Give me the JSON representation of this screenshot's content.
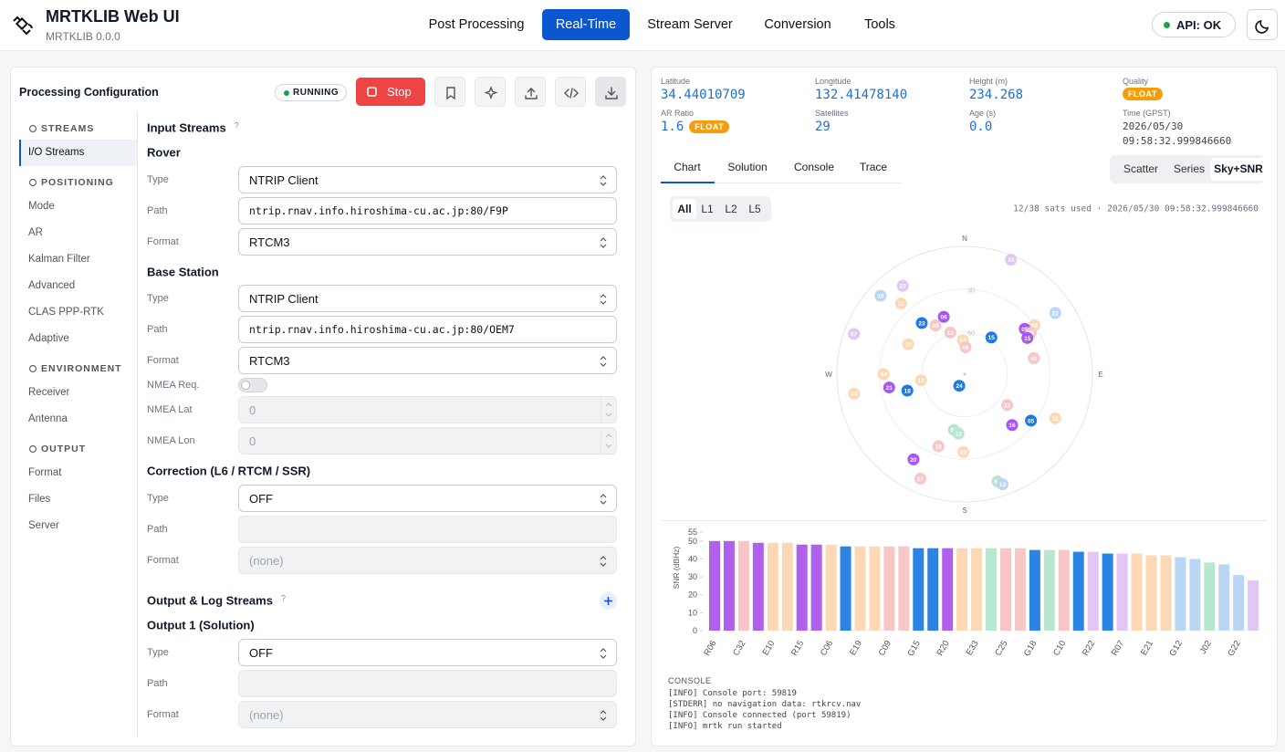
{
  "header": {
    "title": "MRTKLIB Web UI",
    "version": "MRTKLIB 0.0.0",
    "nav": [
      "Post Processing",
      "Real-Time",
      "Stream Server",
      "Conversion",
      "Tools"
    ],
    "api": "API: OK"
  },
  "config": {
    "title": "Processing Configuration",
    "status": "RUNNING",
    "stop": "Stop",
    "sidebar": [
      {
        "title": "STREAMS",
        "items": [
          "I/O Streams"
        ]
      },
      {
        "title": "POSITIONING",
        "items": [
          "Mode",
          "AR",
          "Kalman Filter",
          "Advanced",
          "CLAS PPP-RTK",
          "Adaptive"
        ]
      },
      {
        "title": "ENVIRONMENT",
        "items": [
          "Receiver",
          "Antenna"
        ]
      },
      {
        "title": "OUTPUT",
        "items": [
          "Format",
          "Files",
          "Server"
        ]
      }
    ],
    "rows": [
      {
        "kind": "heading",
        "text": "Input Streams",
        "help": "?"
      },
      {
        "kind": "sub",
        "text": "Rover"
      },
      {
        "kind": "field",
        "label": "Type",
        "value": "NTRIP Client",
        "control": "select"
      },
      {
        "kind": "field",
        "label": "Path",
        "value": "ntrip.rnav.info.hiroshima-cu.ac.jp:80/F9P",
        "control": "input"
      },
      {
        "kind": "field",
        "label": "Format",
        "value": "RTCM3",
        "control": "select"
      },
      {
        "kind": "sub",
        "text": "Base Station"
      },
      {
        "kind": "field",
        "label": "Type",
        "value": "NTRIP Client",
        "control": "select"
      },
      {
        "kind": "field",
        "label": "Path",
        "value": "ntrip.rnav.info.hiroshima-cu.ac.jp:80/OEM7",
        "control": "input"
      },
      {
        "kind": "field",
        "label": "Format",
        "value": "RTCM3",
        "control": "select"
      },
      {
        "kind": "field",
        "label": "NMEA Req.",
        "control": "toggle"
      },
      {
        "kind": "field",
        "label": "NMEA Lat",
        "value": "0",
        "control": "number"
      },
      {
        "kind": "field",
        "label": "NMEA Lon",
        "value": "0",
        "control": "number"
      },
      {
        "kind": "heading",
        "text": "Correction (L6 / RTCM / SSR)"
      },
      {
        "kind": "field",
        "label": "Type",
        "value": "OFF",
        "control": "select"
      },
      {
        "kind": "field",
        "label": "Path",
        "control": "disabled"
      },
      {
        "kind": "field",
        "label": "Format",
        "value": "(none)",
        "control": "disabled-select"
      },
      {
        "kind": "heading",
        "text": "Output & Log Streams",
        "help": "?",
        "add_button": true
      },
      {
        "kind": "sub",
        "text": "Output 1 (Solution)"
      },
      {
        "kind": "field",
        "label": "Type",
        "value": "OFF",
        "control": "select"
      },
      {
        "kind": "field",
        "label": "Path",
        "control": "disabled"
      },
      {
        "kind": "field",
        "label": "Format",
        "value": "(none)",
        "control": "disabled-select"
      }
    ]
  },
  "status": {
    "fields": [
      {
        "label": "Latitude",
        "value": "34.44010709"
      },
      {
        "label": "Longitude",
        "value": "132.41478140"
      },
      {
        "label": "Height (m)",
        "value": "234.268"
      },
      {
        "label": "Quality",
        "badge": "FLOAT"
      },
      {
        "label": "AR Ratio",
        "value": "1.6",
        "badge": "FLOAT"
      },
      {
        "label": "Satellites",
        "value": "29"
      },
      {
        "label": "Age (s)",
        "value": "0.0"
      },
      {
        "label": "Time (GPST)",
        "value": "2026/05/30 09:58:32.999846660"
      }
    ]
  },
  "tabs": [
    "Chart",
    "Solution",
    "Console",
    "Trace"
  ],
  "views": [
    "Scatter",
    "Series",
    "Sky+SNR"
  ],
  "filters": [
    "All",
    "L1",
    "L2",
    "L5"
  ],
  "sats_info": "12/38 sats used · 2026/05/30 09:58:32.999846660",
  "chart_data": [
    {
      "type": "sky",
      "directions": [
        "N",
        "E",
        "S",
        "W"
      ],
      "elticks": [
        30,
        60
      ],
      "satellites": [
        {
          "name": "24",
          "az": 22,
          "el": 3,
          "color": "#e2c6f5"
        },
        {
          "name": "22",
          "az": 325,
          "el": 14,
          "color": "#e2c6f5"
        },
        {
          "name": "10",
          "az": 313,
          "el": 9,
          "color": "#b9d6f5"
        },
        {
          "name": "12",
          "az": 318,
          "el": 23,
          "color": "#fcd9b4"
        },
        {
          "name": "22",
          "az": 56,
          "el": 13,
          "color": "#b9d6f5"
        },
        {
          "name": "06",
          "az": 340,
          "el": 47,
          "color": "#a855f7"
        },
        {
          "name": "23",
          "az": 320,
          "el": 43,
          "color": "#1e7be0"
        },
        {
          "name": "09",
          "az": 329,
          "el": 50,
          "color": "#f8c6c6"
        },
        {
          "name": "13",
          "az": 341,
          "el": 59,
          "color": "#f8c6c6"
        },
        {
          "name": "26",
          "az": 55,
          "el": 30,
          "color": "#fcd9b4"
        },
        {
          "name": "05",
          "az": 53,
          "el": 37,
          "color": "#a855f7"
        },
        {
          "name": "25",
          "az": 58,
          "el": 35,
          "color": "#f8c6c6"
        },
        {
          "name": "15",
          "az": 60,
          "el": 39,
          "color": "#a855f7"
        },
        {
          "name": "15",
          "az": 36,
          "el": 58,
          "color": "#1e7be0"
        },
        {
          "name": "07",
          "az": 290,
          "el": 7,
          "color": "#e2c6f5"
        },
        {
          "name": "10",
          "az": 298,
          "el": 45,
          "color": "#fcd9b4"
        },
        {
          "name": "14",
          "az": 357,
          "el": 66,
          "color": "#fcd9b4"
        },
        {
          "name": "06",
          "az": 2,
          "el": 71,
          "color": "#f8c6c6"
        },
        {
          "name": "40",
          "az": 77,
          "el": 40,
          "color": "#f8c6c6"
        },
        {
          "name": "04",
          "az": 270,
          "el": 33,
          "color": "#fcd9b4"
        },
        {
          "name": "12",
          "az": 262,
          "el": 59,
          "color": "#fcd9b4"
        },
        {
          "name": "21",
          "az": 260,
          "el": 36,
          "color": "#a855f7"
        },
        {
          "name": "18",
          "az": 254,
          "el": 48,
          "color": "#1e7be0"
        },
        {
          "name": "24",
          "az": 205,
          "el": 81,
          "color": "#1e7be0"
        },
        {
          "name": "04",
          "az": 260,
          "el": 11,
          "color": "#fcd9b4"
        },
        {
          "name": "22",
          "az": 126,
          "el": 53,
          "color": "#f8c6c6"
        },
        {
          "name": "11",
          "az": 116,
          "el": 19,
          "color": "#fcd9b4"
        },
        {
          "name": "16",
          "az": 137,
          "el": 41,
          "color": "#a855f7"
        },
        {
          "name": "05",
          "az": 125,
          "el": 33,
          "color": "#1e7be0"
        },
        {
          "name": "01",
          "az": 191,
          "el": 50,
          "color": "#b7e8cf"
        },
        {
          "name": "12",
          "az": 186,
          "el": 48,
          "color": "#b7e8cf"
        },
        {
          "name": "10",
          "az": 200,
          "el": 36,
          "color": "#f8c6c6"
        },
        {
          "name": "23",
          "az": 181,
          "el": 35,
          "color": "#fcd9b4"
        },
        {
          "name": "20",
          "az": 211,
          "el": 20,
          "color": "#a855f7"
        },
        {
          "name": "27",
          "az": 203,
          "el": 10,
          "color": "#f8c6c6"
        },
        {
          "name": "62",
          "az": 163,
          "el": 11,
          "color": "#b7e8cf"
        },
        {
          "name": "13",
          "az": 161,
          "el": 8,
          "color": "#b9d6f5"
        }
      ]
    },
    {
      "type": "bar",
      "ylabel": "SNR (dBHz)",
      "ylim": [
        0,
        55
      ],
      "yticks": [
        0,
        10,
        20,
        30,
        40,
        50,
        55
      ],
      "categories": [
        "R06",
        null,
        "C32",
        null,
        "E10",
        null,
        "R15",
        null,
        "C06",
        null,
        "E19",
        null,
        "C09",
        null,
        "G15",
        null,
        "R20",
        null,
        "E33",
        null,
        "C25",
        null,
        "G18",
        null,
        "C10",
        null,
        "R22",
        null,
        "R07",
        null,
        "E21",
        null,
        "G12",
        null,
        "J02",
        null,
        "G22",
        null
      ],
      "values": [
        50,
        50,
        50,
        49,
        49,
        49,
        48,
        48,
        48,
        47,
        47,
        47,
        47,
        47,
        46,
        46,
        46,
        46,
        46,
        46,
        46,
        46,
        45,
        45,
        45,
        44,
        44,
        43,
        43,
        43,
        42,
        42,
        41,
        40,
        38,
        37,
        31,
        28
      ],
      "colors": [
        "#b060ec",
        "#b060ec",
        "#f8c6c6",
        "#b060ec",
        "#fcd9b4",
        "#fcd9b4",
        "#b060ec",
        "#b060ec",
        "#fcd9b4",
        "#2b84e3",
        "#fcd9b4",
        "#fcd9b4",
        "#f8c6c6",
        "#f8c6c6",
        "#2b84e3",
        "#2b84e3",
        "#b060ec",
        "#fcd9b4",
        "#fcd9b4",
        "#b7e8cf",
        "#f8c6c6",
        "#f8c6c6",
        "#2b84e3",
        "#b7e8cf",
        "#f8c6c6",
        "#2b84e3",
        "#e2c6f5",
        "#2b84e3",
        "#e2c6f5",
        "#fcd9b4",
        "#fcd9b4",
        "#fcd9b4",
        "#b9d6f5",
        "#b9d6f5",
        "#b7e8cf",
        "#b9d6f5",
        "#b9d6f5",
        "#e2c6f5"
      ]
    }
  ],
  "console": {
    "title": "CONSOLE",
    "lines": [
      "[INFO] Console port: 59819",
      "[STDERR] no navigation data: rtkrcv.nav",
      "[INFO] Console connected (port 59819)",
      "[INFO] mrtk run started"
    ]
  }
}
